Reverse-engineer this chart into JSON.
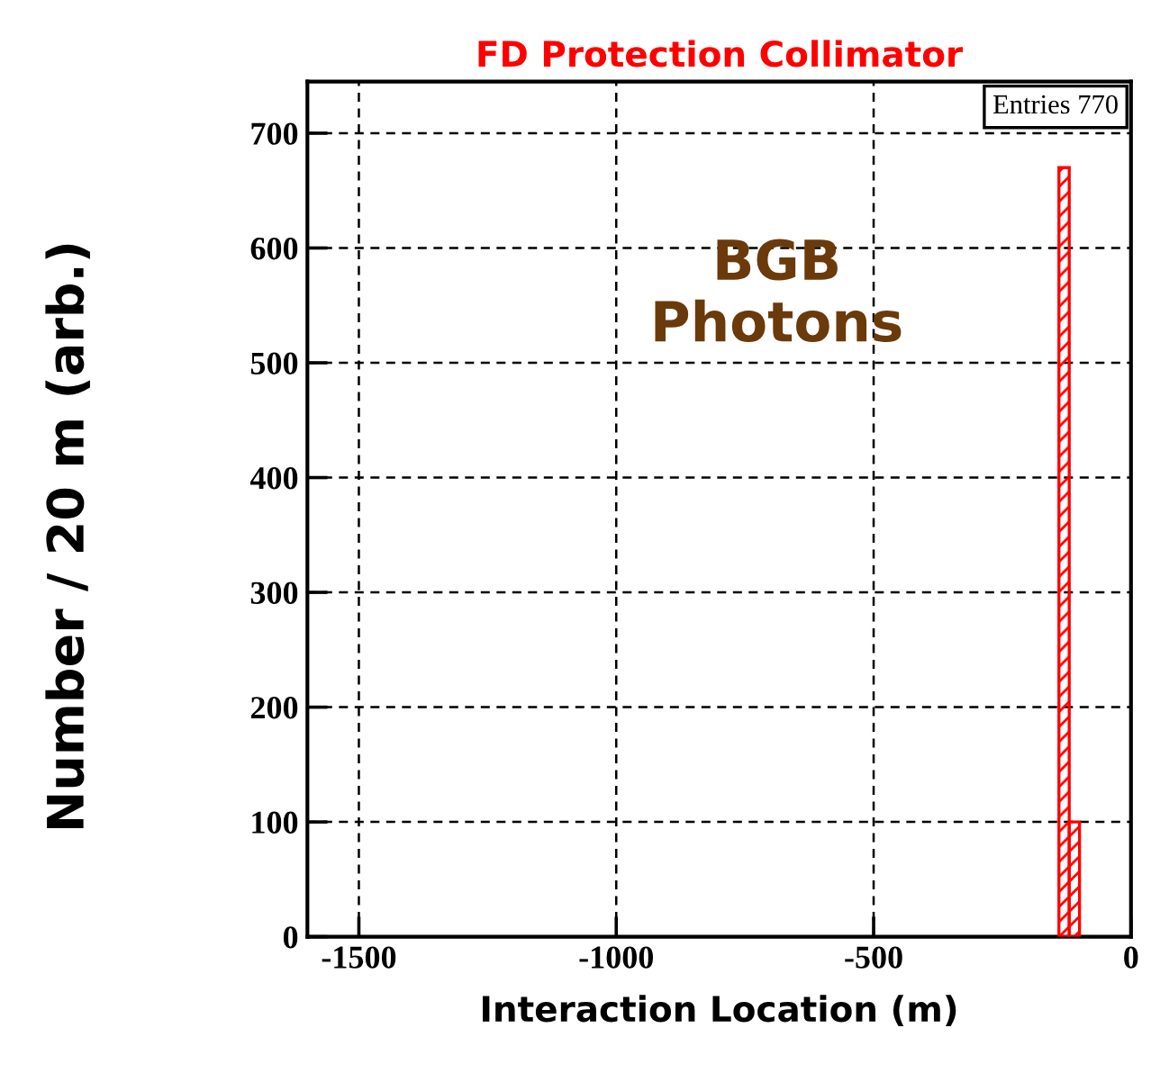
{
  "chart_data": {
    "type": "histogram",
    "title": "FD Protection Collimator",
    "xlabel": "Interaction Location (m)",
    "ylabel": "Number / 20 m (arb.)",
    "bins": [
      -140,
      -120,
      -100
    ],
    "values": [
      670,
      100
    ],
    "color": "#ff0000",
    "xlim": [
      -1600,
      0
    ],
    "xticks": [
      -1500,
      -1000,
      -500,
      0
    ],
    "ylim": [
      0,
      745
    ],
    "yticks": [
      0,
      100,
      200,
      300,
      400,
      500,
      600,
      700
    ],
    "grid": true,
    "legend": false,
    "annotations": [
      "Entries 770",
      "BGB\nPhotons"
    ]
  }
}
